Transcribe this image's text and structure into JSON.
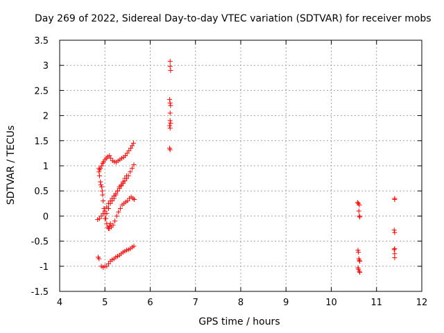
{
  "chart_data": {
    "type": "scatter",
    "title": "Day 269 of 2022, Sidereal Day-to-day VTEC variation (SDTVAR) for receiver mobs",
    "xlabel": "GPS time / hours",
    "ylabel": "SDTVAR / TECUs",
    "xlim": [
      4,
      12
    ],
    "ylim": [
      -1.5,
      3.5
    ],
    "xticks": [
      4,
      5,
      6,
      7,
      8,
      9,
      10,
      11,
      12
    ],
    "yticks": [
      -1.5,
      -1,
      -0.5,
      0,
      0.5,
      1,
      1.5,
      2,
      2.5,
      3,
      3.5
    ],
    "xtick_labels": [
      "4",
      "5",
      "6",
      "7",
      "8",
      "9",
      "10",
      "11",
      "12"
    ],
    "ytick_labels": [
      "-1.5",
      "-1",
      "-0.5",
      "0",
      "0.5",
      "1",
      "1.5",
      "2",
      "2.5",
      "3",
      "3.5"
    ],
    "grid": true,
    "marker": "+",
    "color": "#ff0000",
    "series": [
      {
        "name": "SDTVAR",
        "points": [
          [
            4.87,
            0.95
          ],
          [
            4.87,
            0.88
          ],
          [
            4.88,
            0.8
          ],
          [
            4.9,
            0.68
          ],
          [
            4.91,
            0.62
          ],
          [
            4.93,
            0.58
          ],
          [
            4.94,
            0.5
          ],
          [
            4.95,
            0.42
          ],
          [
            4.96,
            0.3
          ],
          [
            4.98,
            0.15
          ],
          [
            5.0,
            0.05
          ],
          [
            5.02,
            -0.05
          ],
          [
            5.04,
            -0.15
          ],
          [
            5.06,
            -0.22
          ],
          [
            5.08,
            -0.25
          ],
          [
            5.1,
            -0.2
          ],
          [
            5.12,
            -0.15
          ],
          [
            4.88,
            0.92
          ],
          [
            4.9,
            0.95
          ],
          [
            4.93,
            1.0
          ],
          [
            4.95,
            1.05
          ],
          [
            4.97,
            1.08
          ],
          [
            5.0,
            1.12
          ],
          [
            5.03,
            1.15
          ],
          [
            5.06,
            1.18
          ],
          [
            5.1,
            1.2
          ],
          [
            5.13,
            1.15
          ],
          [
            5.17,
            1.1
          ],
          [
            5.21,
            1.08
          ],
          [
            5.25,
            1.07
          ],
          [
            5.29,
            1.1
          ],
          [
            5.33,
            1.12
          ],
          [
            5.37,
            1.15
          ],
          [
            5.41,
            1.17
          ],
          [
            5.45,
            1.2
          ],
          [
            5.49,
            1.25
          ],
          [
            5.53,
            1.3
          ],
          [
            5.57,
            1.35
          ],
          [
            5.6,
            1.4
          ],
          [
            5.63,
            1.45
          ],
          [
            4.84,
            -0.07
          ],
          [
            4.88,
            -0.05
          ],
          [
            4.92,
            0.0
          ],
          [
            4.96,
            0.05
          ],
          [
            5.0,
            0.1
          ],
          [
            5.04,
            0.18
          ],
          [
            5.08,
            0.25
          ],
          [
            5.12,
            0.3
          ],
          [
            5.16,
            0.35
          ],
          [
            5.2,
            0.4
          ],
          [
            5.24,
            0.45
          ],
          [
            5.28,
            0.5
          ],
          [
            5.32,
            0.55
          ],
          [
            5.36,
            0.6
          ],
          [
            5.4,
            0.65
          ],
          [
            5.44,
            0.7
          ],
          [
            5.48,
            0.75
          ],
          [
            5.52,
            0.8
          ],
          [
            5.56,
            0.88
          ],
          [
            5.6,
            0.95
          ],
          [
            5.64,
            1.02
          ],
          [
            5.0,
            -0.05
          ],
          [
            5.04,
            0.05
          ],
          [
            5.08,
            0.15
          ],
          [
            5.12,
            0.25
          ],
          [
            5.16,
            0.3
          ],
          [
            5.2,
            0.35
          ],
          [
            5.24,
            0.42
          ],
          [
            5.28,
            0.5
          ],
          [
            5.32,
            0.58
          ],
          [
            5.36,
            0.62
          ],
          [
            5.4,
            0.68
          ],
          [
            5.44,
            0.75
          ],
          [
            5.48,
            0.8
          ],
          [
            5.1,
            -0.25
          ],
          [
            5.14,
            -0.22
          ],
          [
            5.18,
            -0.18
          ],
          [
            5.22,
            -0.1
          ],
          [
            5.26,
            0.0
          ],
          [
            5.3,
            0.08
          ],
          [
            5.34,
            0.15
          ],
          [
            5.38,
            0.22
          ],
          [
            5.42,
            0.25
          ],
          [
            5.46,
            0.28
          ],
          [
            5.5,
            0.3
          ],
          [
            5.54,
            0.35
          ],
          [
            5.58,
            0.38
          ],
          [
            5.62,
            0.35
          ],
          [
            5.65,
            0.33
          ],
          [
            4.85,
            -0.82
          ],
          [
            4.87,
            -0.85
          ],
          [
            4.92,
            -1.0
          ],
          [
            4.96,
            -1.02
          ],
          [
            5.0,
            -1.0
          ],
          [
            5.04,
            -1.0
          ],
          [
            5.08,
            -0.95
          ],
          [
            5.12,
            -0.9
          ],
          [
            5.16,
            -0.87
          ],
          [
            5.2,
            -0.85
          ],
          [
            5.24,
            -0.82
          ],
          [
            5.28,
            -0.8
          ],
          [
            5.32,
            -0.78
          ],
          [
            5.36,
            -0.75
          ],
          [
            5.4,
            -0.72
          ],
          [
            5.44,
            -0.7
          ],
          [
            5.48,
            -0.68
          ],
          [
            5.52,
            -0.67
          ],
          [
            5.56,
            -0.65
          ],
          [
            5.6,
            -0.62
          ],
          [
            5.64,
            -0.6
          ],
          [
            6.44,
            3.08
          ],
          [
            6.44,
            2.98
          ],
          [
            6.45,
            2.9
          ],
          [
            6.43,
            2.32
          ],
          [
            6.44,
            2.25
          ],
          [
            6.45,
            2.2
          ],
          [
            6.44,
            2.05
          ],
          [
            6.44,
            1.9
          ],
          [
            6.45,
            1.85
          ],
          [
            6.43,
            1.8
          ],
          [
            6.44,
            1.75
          ],
          [
            6.43,
            1.35
          ],
          [
            6.44,
            1.32
          ],
          [
            10.58,
            0.27
          ],
          [
            10.6,
            0.25
          ],
          [
            10.62,
            0.22
          ],
          [
            10.61,
            0.1
          ],
          [
            10.62,
            0.0
          ],
          [
            10.63,
            -0.02
          ],
          [
            10.59,
            -0.68
          ],
          [
            10.6,
            -0.72
          ],
          [
            10.61,
            -0.85
          ],
          [
            10.62,
            -0.88
          ],
          [
            10.63,
            -0.9
          ],
          [
            10.59,
            -1.03
          ],
          [
            10.6,
            -1.06
          ],
          [
            10.62,
            -1.1
          ],
          [
            10.63,
            -1.12
          ],
          [
            11.4,
            0.35
          ],
          [
            11.4,
            0.33
          ],
          [
            11.39,
            -0.28
          ],
          [
            11.4,
            -0.33
          ],
          [
            11.4,
            -0.65
          ],
          [
            11.39,
            -0.67
          ],
          [
            11.4,
            -0.75
          ],
          [
            11.4,
            -0.83
          ]
        ]
      }
    ]
  }
}
